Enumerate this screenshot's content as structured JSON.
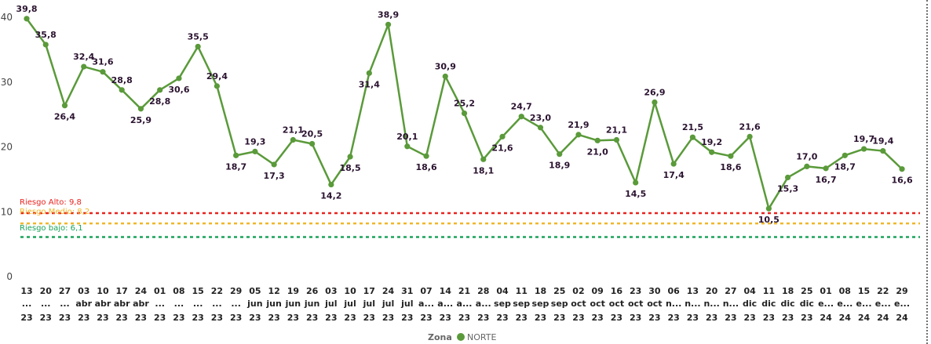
{
  "chart_data": {
    "type": "line",
    "title": "",
    "xlabel": "",
    "ylabel": "",
    "ylim": [
      0,
      41
    ],
    "yticks": [
      0,
      10,
      20,
      30,
      40
    ],
    "grid": false,
    "legend_position": "bottom",
    "legend": {
      "title": "Zona",
      "entries": [
        "NORTE"
      ]
    },
    "categories": [
      [
        "13",
        "...",
        "23"
      ],
      [
        "20",
        "...",
        "23"
      ],
      [
        "27",
        "...",
        "23"
      ],
      [
        "03",
        "abr",
        "23"
      ],
      [
        "10",
        "abr",
        "23"
      ],
      [
        "17",
        "abr",
        "23"
      ],
      [
        "24",
        "abr",
        "23"
      ],
      [
        "01",
        "...",
        "23"
      ],
      [
        "08",
        "...",
        "23"
      ],
      [
        "15",
        "...",
        "23"
      ],
      [
        "22",
        "...",
        "23"
      ],
      [
        "29",
        "...",
        "23"
      ],
      [
        "05",
        "jun",
        "23"
      ],
      [
        "12",
        "jun",
        "23"
      ],
      [
        "19",
        "jun",
        "23"
      ],
      [
        "26",
        "jun",
        "23"
      ],
      [
        "03",
        "jul",
        "23"
      ],
      [
        "10",
        "jul",
        "23"
      ],
      [
        "17",
        "jul",
        "23"
      ],
      [
        "24",
        "jul",
        "23"
      ],
      [
        "31",
        "jul",
        "23"
      ],
      [
        "07",
        "a...",
        "23"
      ],
      [
        "14",
        "a...",
        "23"
      ],
      [
        "21",
        "a...",
        "23"
      ],
      [
        "28",
        "a...",
        "23"
      ],
      [
        "04",
        "sep",
        "23"
      ],
      [
        "11",
        "sep",
        "23"
      ],
      [
        "18",
        "sep",
        "23"
      ],
      [
        "25",
        "sep",
        "23"
      ],
      [
        "02",
        "oct",
        "23"
      ],
      [
        "09",
        "oct",
        "23"
      ],
      [
        "16",
        "oct",
        "23"
      ],
      [
        "23",
        "oct",
        "23"
      ],
      [
        "30",
        "oct",
        "23"
      ],
      [
        "06",
        "n...",
        "23"
      ],
      [
        "13",
        "n...",
        "23"
      ],
      [
        "20",
        "n...",
        "23"
      ],
      [
        "27",
        "n...",
        "23"
      ],
      [
        "04",
        "dic",
        "23"
      ],
      [
        "11",
        "dic",
        "23"
      ],
      [
        "18",
        "dic",
        "23"
      ],
      [
        "25",
        "dic",
        "23"
      ],
      [
        "01",
        "e...",
        "24"
      ],
      [
        "08",
        "e...",
        "24"
      ],
      [
        "15",
        "e...",
        "24"
      ],
      [
        "22",
        "e...",
        "24"
      ],
      [
        "29",
        "e...",
        "24"
      ]
    ],
    "series": [
      {
        "name": "NORTE",
        "color": "#5a9a3a",
        "values": [
          39.8,
          35.8,
          26.4,
          32.4,
          31.6,
          28.8,
          25.9,
          28.8,
          30.6,
          35.5,
          29.4,
          18.7,
          19.3,
          17.3,
          21.1,
          20.5,
          14.2,
          18.5,
          31.4,
          38.9,
          20.1,
          18.6,
          30.9,
          25.2,
          18.1,
          21.6,
          24.7,
          23.0,
          18.9,
          21.9,
          21.0,
          21.1,
          14.5,
          26.9,
          17.4,
          21.5,
          19.2,
          18.6,
          21.6,
          10.5,
          15.3,
          17.0,
          16.7,
          18.7,
          19.7,
          19.4,
          16.6
        ],
        "labels": [
          "39,8",
          "35,8",
          "26,4",
          "32,4",
          "31,6",
          "28,8",
          "25,9",
          "28,8",
          "30,6",
          "35,5",
          "29,4",
          "18,7",
          "19,3",
          "17,3",
          "21,1",
          "20,5",
          "14,2",
          "18,5",
          "31,4",
          "38,9",
          "20,1",
          "18,6",
          "30,9",
          "25,2",
          "18,1",
          "21,6",
          "24,7",
          "23,0",
          "18,9",
          "21,9",
          "21,0",
          "21,1",
          "14,5",
          "26,9",
          "17,4",
          "21,5",
          "19,2",
          "18,6",
          "21,6",
          "10,5",
          "15,3",
          "17,0",
          "16,7",
          "18,7",
          "19,7",
          "19,4",
          "16,6"
        ]
      }
    ],
    "reference_lines": [
      {
        "label": "Riesgo Alto: 9,8",
        "value": 9.8,
        "color": "#e8231f"
      },
      {
        "label": "Riesgo Medio: 8,2",
        "value": 8.2,
        "color": "#f0b72a"
      },
      {
        "label": "Riesgo bajo: 6,1",
        "value": 6.1,
        "color": "#1aa35a"
      }
    ]
  }
}
